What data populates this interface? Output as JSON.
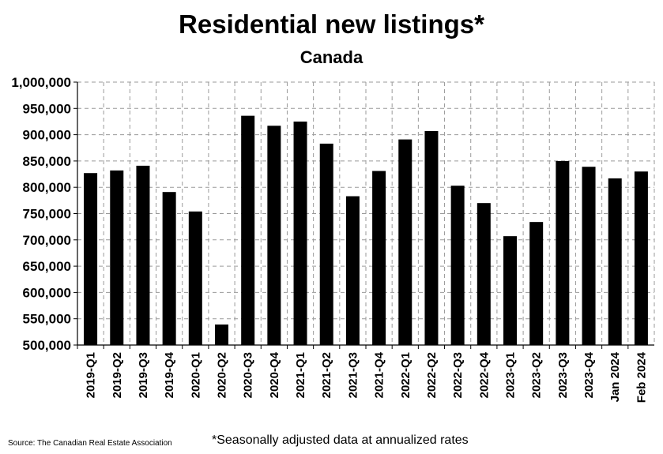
{
  "chart_data": {
    "type": "bar",
    "title": "Residential new listings*",
    "subtitle": "Canada",
    "categories": [
      "2019-Q1",
      "2019-Q2",
      "2019-Q3",
      "2019-Q4",
      "2020-Q1",
      "2020-Q2",
      "2020-Q3",
      "2020-Q4",
      "2021-Q1",
      "2021-Q2",
      "2021-Q3",
      "2021-Q4",
      "2022-Q1",
      "2022-Q2",
      "2022-Q3",
      "2022-Q4",
      "2023-Q1",
      "2023-Q2",
      "2023-Q3",
      "2023-Q4",
      "Jan 2024",
      "Feb 2024"
    ],
    "values": [
      827000,
      832000,
      841000,
      791000,
      754000,
      539000,
      936000,
      917000,
      925000,
      883000,
      783000,
      831000,
      891000,
      907000,
      803000,
      770000,
      707000,
      734000,
      850000,
      839000,
      817000,
      830000
    ],
    "ylim": [
      500000,
      1000000
    ],
    "yticks": [
      "500,000",
      "550,000",
      "600,000",
      "650,000",
      "700,000",
      "750,000",
      "800,000",
      "850,000",
      "900,000",
      "950,000",
      "1,000,000"
    ],
    "ytick_values": [
      500000,
      550000,
      600000,
      650000,
      700000,
      750000,
      800000,
      850000,
      900000,
      950000,
      1000000
    ],
    "grid": true,
    "bar_color": "#000000"
  },
  "source": "Source: The Canadian Real Estate Association",
  "footnote": "*Seasonally adjusted data at annualized rates"
}
